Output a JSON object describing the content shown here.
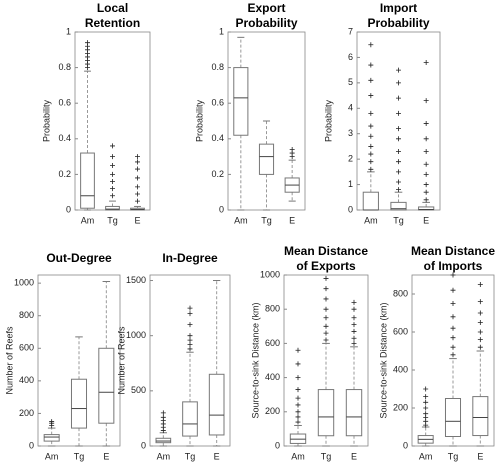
{
  "chart_data": [
    {
      "type": "box",
      "title": [
        "Local",
        "Retention"
      ],
      "ylabel": "Probability",
      "categories": [
        "Am",
        "Tg",
        "E"
      ],
      "ylim": [
        0,
        1
      ],
      "yticks": [
        0,
        0.2,
        0.4,
        0.6,
        0.8,
        1
      ],
      "boxes": [
        {
          "low": 0,
          "q1": 0.01,
          "median": 0.08,
          "q3": 0.32,
          "high": 0.78,
          "outliers": [
            0.8,
            0.82,
            0.84,
            0.86,
            0.88,
            0.9,
            0.92,
            0.94
          ]
        },
        {
          "low": 0,
          "q1": 0,
          "median": 0.005,
          "q3": 0.02,
          "high": 0.05,
          "outliers": [
            0.08,
            0.12,
            0.16,
            0.2,
            0.25,
            0.3,
            0.36
          ]
        },
        {
          "low": 0,
          "q1": 0,
          "median": 0.003,
          "q3": 0.01,
          "high": 0.02,
          "outliers": [
            0.05,
            0.09,
            0.13,
            0.18,
            0.23,
            0.27,
            0.3
          ]
        }
      ]
    },
    {
      "type": "box",
      "title": [
        "Export",
        "Probability"
      ],
      "ylabel": "Probability",
      "categories": [
        "Am",
        "Tg",
        "E"
      ],
      "ylim": [
        0,
        1
      ],
      "yticks": [
        0,
        0.2,
        0.4,
        0.6,
        0.8,
        1
      ],
      "boxes": [
        {
          "low": 0,
          "q1": 0.42,
          "median": 0.63,
          "q3": 0.8,
          "high": 0.97,
          "outliers": []
        },
        {
          "low": 0,
          "q1": 0.2,
          "median": 0.3,
          "q3": 0.37,
          "high": 0.5,
          "outliers": []
        },
        {
          "low": 0.05,
          "q1": 0.1,
          "median": 0.14,
          "q3": 0.18,
          "high": 0.28,
          "outliers": [
            0.3,
            0.32,
            0.34
          ]
        }
      ]
    },
    {
      "type": "box",
      "title": [
        "Import",
        "Probability"
      ],
      "ylabel": "Probability",
      "categories": [
        "Am",
        "Tg",
        "E"
      ],
      "ylim": [
        0,
        7
      ],
      "yticks": [
        0,
        1,
        2,
        3,
        4,
        5,
        6,
        7
      ],
      "boxes": [
        {
          "low": 0,
          "q1": 0,
          "median": 0,
          "q3": 0.7,
          "high": 1.5,
          "outliers": [
            1.6,
            1.9,
            2.2,
            2.5,
            2.9,
            3.3,
            3.8,
            4.5,
            5.1,
            5.7,
            6.5
          ]
        },
        {
          "low": 0,
          "q1": 0,
          "median": 0.05,
          "q3": 0.3,
          "high": 0.7,
          "outliers": [
            0.8,
            1.1,
            1.5,
            1.9,
            2.3,
            2.8,
            3.2,
            3.8,
            4.4,
            5,
            5.5
          ]
        },
        {
          "low": 0,
          "q1": 0,
          "median": 0.02,
          "q3": 0.12,
          "high": 0.3,
          "outliers": [
            0.4,
            0.7,
            1,
            1.4,
            1.8,
            2.3,
            2.8,
            3.4,
            4.3,
            5.8
          ]
        }
      ]
    },
    {
      "type": "box",
      "title": [
        "Out-Degree"
      ],
      "ylabel": "Number of Reefs",
      "categories": [
        "Am",
        "Tg",
        "E"
      ],
      "ylim": [
        0,
        1050
      ],
      "yticks": [
        0,
        200,
        400,
        600,
        800,
        1000
      ],
      "boxes": [
        {
          "low": 0,
          "q1": 30,
          "median": 55,
          "q3": 70,
          "high": 110,
          "outliers": [
            125,
            140,
            150
          ]
        },
        {
          "low": 0,
          "q1": 110,
          "median": 230,
          "q3": 410,
          "high": 670,
          "outliers": []
        },
        {
          "low": 0,
          "q1": 140,
          "median": 330,
          "q3": 600,
          "high": 1010,
          "outliers": []
        }
      ]
    },
    {
      "type": "box",
      "title": [
        "In-Degree"
      ],
      "ylabel": "Number of Reefs",
      "categories": [
        "Am",
        "Tg",
        "E"
      ],
      "ylim": [
        0,
        1550
      ],
      "yticks": [
        0,
        500,
        1000,
        1500
      ],
      "boxes": [
        {
          "low": 0,
          "q1": 30,
          "median": 45,
          "q3": 70,
          "high": 120,
          "outliers": [
            140,
            170,
            200,
            230,
            260,
            300
          ]
        },
        {
          "low": 0,
          "q1": 90,
          "median": 200,
          "q3": 400,
          "high": 850,
          "outliers": [
            880,
            920,
            960,
            1000,
            1100,
            1200,
            1250
          ]
        },
        {
          "low": 0,
          "q1": 100,
          "median": 280,
          "q3": 650,
          "high": 1500,
          "outliers": []
        }
      ]
    },
    {
      "type": "box",
      "title": [
        "Mean Distance",
        "of Exports"
      ],
      "ylabel": "Source-to-sink Distance (km)",
      "categories": [
        "Am",
        "Tg",
        "E"
      ],
      "ylim": [
        0,
        1000
      ],
      "yticks": [
        0,
        200,
        400,
        600,
        800,
        1000
      ],
      "boxes": [
        {
          "low": 0,
          "q1": 15,
          "median": 40,
          "q3": 70,
          "high": 120,
          "outliers": [
            140,
            170,
            200,
            240,
            280,
            330,
            400,
            480,
            560
          ]
        },
        {
          "low": 0,
          "q1": 60,
          "median": 170,
          "q3": 330,
          "high": 600,
          "outliers": [
            620,
            660,
            700,
            750,
            800,
            860,
            920,
            980
          ]
        },
        {
          "low": 0,
          "q1": 60,
          "median": 170,
          "q3": 330,
          "high": 580,
          "outliers": [
            600,
            630,
            670,
            710,
            750,
            800,
            840
          ]
        }
      ]
    },
    {
      "type": "box",
      "title": [
        "Mean Distance",
        "of Imports"
      ],
      "ylabel": "Source-to-sink Distance (km)",
      "categories": [
        "Am",
        "Tg",
        "E"
      ],
      "ylim": [
        0,
        900
      ],
      "yticks": [
        0,
        200,
        400,
        600,
        800
      ],
      "boxes": [
        {
          "low": 0,
          "q1": 15,
          "median": 35,
          "q3": 55,
          "high": 100,
          "outliers": [
            110,
            130,
            150,
            170,
            200,
            230,
            260,
            300
          ]
        },
        {
          "low": 0,
          "q1": 50,
          "median": 130,
          "q3": 250,
          "high": 460,
          "outliers": [
            480,
            520,
            570,
            620,
            680,
            750,
            820,
            900
          ]
        },
        {
          "low": 0,
          "q1": 55,
          "median": 150,
          "q3": 260,
          "high": 500,
          "outliers": [
            520,
            560,
            600,
            650,
            700,
            760,
            850
          ]
        }
      ]
    }
  ]
}
